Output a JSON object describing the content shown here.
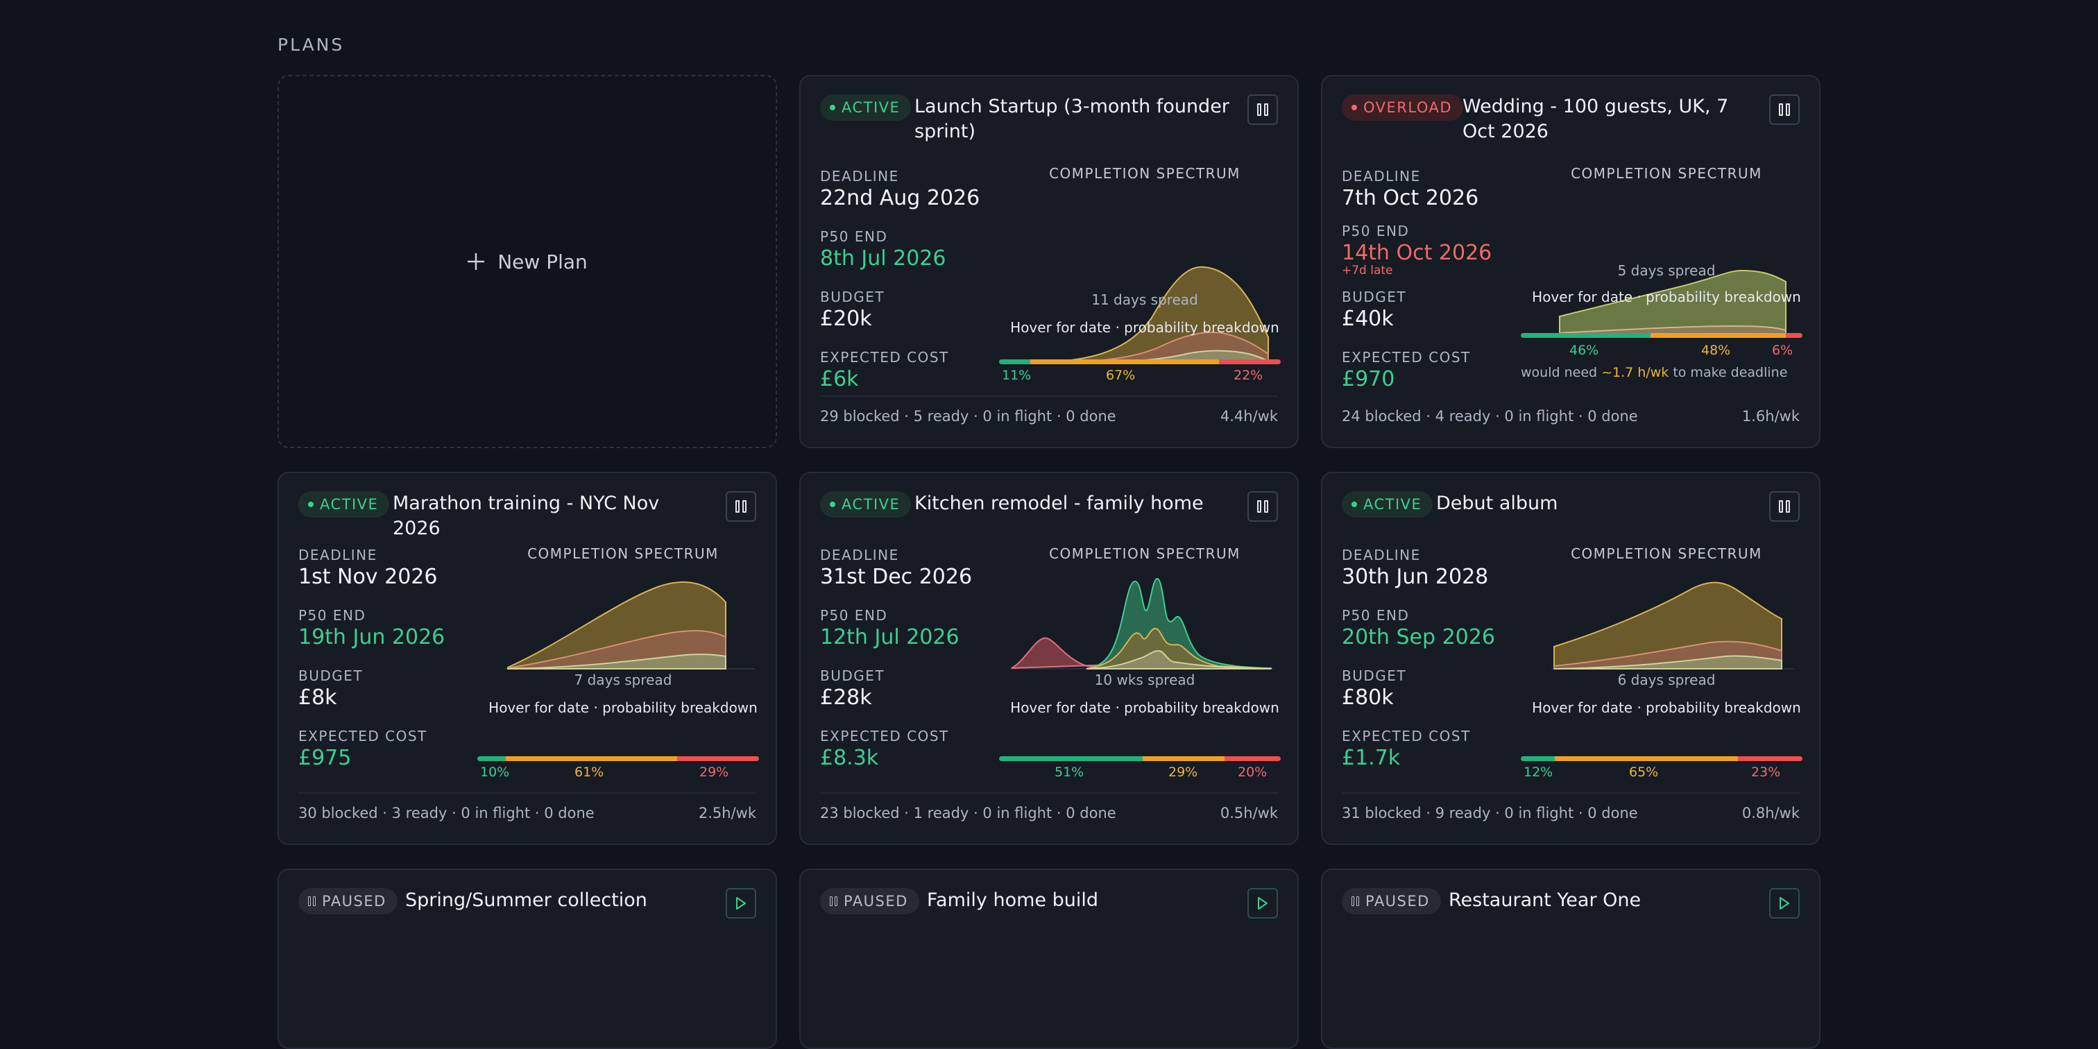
{
  "section_title": "PLANS",
  "new_plan_label": "New Plan",
  "labels": {
    "deadline": "DEADLINE",
    "p50": "P50 END",
    "budget": "BUDGET",
    "expected": "EXPECTED COST",
    "spectrum": "COMPLETION SPECTRUM",
    "hover": "Hover for date · probability breakdown"
  },
  "colors": {
    "background": "#0f131b",
    "card": "#161b24",
    "green": "#3ecf8e",
    "yellow": "#f0a020",
    "red": "#f06a6a"
  },
  "plans": [
    {
      "status": "ACTIVE",
      "status_type": "active",
      "title": "Launch Startup (3-month founder sprint)",
      "control_icon": "pause-icon",
      "deadline": "22nd Aug 2026",
      "p50": "8th Jul 2026",
      "p50_state": "on-track",
      "budget": "£20k",
      "expected_cost": "£6k",
      "spread": "11 days spread",
      "cost_split": [
        11,
        67,
        22
      ],
      "cost_labels": [
        "11%",
        "67%",
        "22%"
      ],
      "footer": "29 blocked · 5 ready · 0 in flight · 0 done",
      "rate": "4.4h/wk"
    },
    {
      "status": "OVERLOAD",
      "status_type": "overload",
      "title": "Wedding - 100 guests, UK, 7 Oct 2026",
      "control_icon": "pause-icon",
      "deadline": "7th Oct 2026",
      "p50": "14th Oct 2026",
      "p50_state": "late",
      "p50_note": "+7d late",
      "budget": "£40k",
      "expected_cost": "£970",
      "spread": "5 days spread",
      "cost_split": [
        46,
        48,
        6
      ],
      "cost_labels": [
        "46%",
        "48%",
        "6%"
      ],
      "need_prefix": "would need ",
      "need_value": "~1.7 h/wk",
      "need_suffix": " to make deadline",
      "footer": "24 blocked · 4 ready · 0 in flight · 0 done",
      "rate": "1.6h/wk"
    },
    {
      "status": "ACTIVE",
      "status_type": "active",
      "title": "Marathon training - NYC Nov 2026",
      "control_icon": "pause-icon",
      "deadline": "1st Nov 2026",
      "p50": "19th Jun 2026",
      "p50_state": "on-track",
      "budget": "£8k",
      "expected_cost": "£975",
      "spread": "7 days spread",
      "cost_split": [
        10,
        61,
        29
      ],
      "cost_labels": [
        "10%",
        "61%",
        "29%"
      ],
      "footer": "30 blocked · 3 ready · 0 in flight · 0 done",
      "rate": "2.5h/wk"
    },
    {
      "status": "ACTIVE",
      "status_type": "active",
      "title": "Kitchen remodel - family home",
      "control_icon": "pause-icon",
      "deadline": "31st Dec 2026",
      "p50": "12th Jul 2026",
      "p50_state": "on-track",
      "budget": "£28k",
      "expected_cost": "£8.3k",
      "spread": "10 wks spread",
      "cost_split": [
        51,
        29,
        20
      ],
      "cost_labels": [
        "51%",
        "29%",
        "20%"
      ],
      "footer": "23 blocked · 1 ready · 0 in flight · 0 done",
      "rate": "0.5h/wk"
    },
    {
      "status": "ACTIVE",
      "status_type": "active",
      "title": "Debut album",
      "control_icon": "pause-icon",
      "deadline": "30th Jun 2028",
      "p50": "20th Sep 2026",
      "p50_state": "on-track",
      "budget": "£80k",
      "expected_cost": "£1.7k",
      "spread": "6 days spread",
      "cost_split": [
        12,
        65,
        23
      ],
      "cost_labels": [
        "12%",
        "65%",
        "23%"
      ],
      "footer": "31 blocked · 9 ready · 0 in flight · 0 done",
      "rate": "0.8h/wk"
    },
    {
      "status": "PAUSED",
      "status_type": "paused",
      "title": "Spring/Summer collection",
      "control_icon": "play-icon"
    },
    {
      "status": "PAUSED",
      "status_type": "paused",
      "title": "Family home build",
      "control_icon": "play-icon"
    },
    {
      "status": "PAUSED",
      "status_type": "paused",
      "title": "Restaurant Year One",
      "control_icon": "play-icon"
    }
  ]
}
